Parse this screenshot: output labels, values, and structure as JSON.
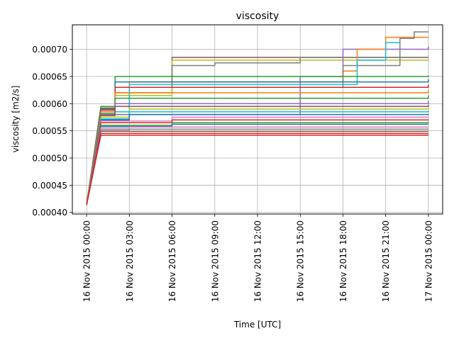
{
  "chart_data": {
    "type": "line",
    "title": "viscosity",
    "xlabel": "Time  [UTC]",
    "ylabel": "viscosity  [m2/s]",
    "x_start": "16 Nov 2015 00:00",
    "x_end": "17 Nov 2015 00:00",
    "xlim": [
      "2015-11-15T23:00",
      "2015-11-17T01:00"
    ],
    "ylim": [
      0.000397,
      0.000745
    ],
    "xticks": [
      {
        "t": "2015-11-16T00:00",
        "label": "16 Nov 2015 00:00"
      },
      {
        "t": "2015-11-16T03:00",
        "label": "16 Nov 2015 03:00"
      },
      {
        "t": "2015-11-16T06:00",
        "label": "16 Nov 2015 06:00"
      },
      {
        "t": "2015-11-16T09:00",
        "label": "16 Nov 2015 09:00"
      },
      {
        "t": "2015-11-16T12:00",
        "label": "16 Nov 2015 12:00"
      },
      {
        "t": "2015-11-16T15:00",
        "label": "16 Nov 2015 15:00"
      },
      {
        "t": "2015-11-16T18:00",
        "label": "16 Nov 2015 18:00"
      },
      {
        "t": "2015-11-16T21:00",
        "label": "16 Nov 2015 21:00"
      },
      {
        "t": "2015-11-17T00:00",
        "label": "17 Nov 2015 00:00"
      }
    ],
    "yticks": [
      {
        "v": 0.0004,
        "label": "0.00040"
      },
      {
        "v": 0.00045,
        "label": "0.00045"
      },
      {
        "v": 0.0005,
        "label": "0.00050"
      },
      {
        "v": 0.00055,
        "label": "0.00055"
      },
      {
        "v": 0.0006,
        "label": "0.00060"
      },
      {
        "v": 0.00065,
        "label": "0.00065"
      },
      {
        "v": 0.0007,
        "label": "0.00070"
      }
    ],
    "grid": true,
    "legend": "none",
    "colors": [
      "#1f77b4",
      "#ff7f0e",
      "#2ca02c",
      "#d62728",
      "#9467bd",
      "#8c564b",
      "#e377c2",
      "#7f7f7f",
      "#bcbd22",
      "#17becf"
    ],
    "series": [
      {
        "x": [
          "2015-11-16T00:00",
          "2015-11-16T01:00",
          "2015-11-16T02:00",
          "2015-11-16T06:00",
          "2015-11-17T00:00"
        ],
        "y": [
          0.000414,
          0.000592,
          0.00062,
          0.000685,
          0.000685
        ],
        "color": "#8c564b"
      },
      {
        "x": [
          "2015-11-16T00:00",
          "2015-11-16T01:00",
          "2015-11-16T02:00",
          "2015-11-16T06:00",
          "2015-11-17T00:00"
        ],
        "y": [
          0.000414,
          0.00059,
          0.000615,
          0.00068,
          0.00068
        ],
        "color": "#bcbd22"
      },
      {
        "x": [
          "2015-11-16T00:00",
          "2015-11-16T01:00",
          "2015-11-16T03:00",
          "2015-11-16T06:00",
          "2015-11-16T09:00",
          "2015-11-16T15:00",
          "2015-11-17T00:00"
        ],
        "y": [
          0.000414,
          0.000585,
          0.00063,
          0.00067,
          0.000675,
          0.000685,
          0.000685
        ],
        "color": "#7f7f7f"
      },
      {
        "x": [
          "2015-11-16T00:00",
          "2015-11-16T01:00",
          "2015-11-16T15:00",
          "2015-11-16T18:00",
          "2015-11-17T00:00"
        ],
        "y": [
          0.000414,
          0.00058,
          0.00065,
          0.0007,
          0.000705
        ],
        "color": "#9467bd"
      },
      {
        "x": [
          "2015-11-16T00:00",
          "2015-11-16T01:00",
          "2015-11-16T03:00",
          "2015-11-16T18:00",
          "2015-11-16T19:00",
          "2015-11-16T21:00",
          "2015-11-17T00:00"
        ],
        "y": [
          0.000414,
          0.000585,
          0.00064,
          0.00066,
          0.0007,
          0.000722,
          0.000722
        ],
        "color": "#ff7f0e"
      },
      {
        "x": [
          "2015-11-16T00:00",
          "2015-11-16T01:00",
          "2015-11-16T03:00",
          "2015-11-16T18:00",
          "2015-11-16T22:00",
          "2015-11-16T23:00",
          "2015-11-17T00:00"
        ],
        "y": [
          0.000414,
          0.00058,
          0.00063,
          0.00067,
          0.00072,
          0.000732,
          0.000732
        ],
        "color": "#7f7f7f"
      },
      {
        "x": [
          "2015-11-16T00:00",
          "2015-11-16T01:00",
          "2015-11-16T03:00",
          "2015-11-16T19:00",
          "2015-11-16T21:00",
          "2015-11-16T22:00"
        ],
        "y": [
          0.000414,
          0.000585,
          0.000635,
          0.00068,
          0.000712,
          0.000712
        ],
        "color": "#17becf"
      },
      {
        "x": [
          "2015-11-16T00:00",
          "2015-11-16T01:00",
          "2015-11-16T02:00",
          "2015-11-17T00:00"
        ],
        "y": [
          0.000414,
          0.000595,
          0.00065,
          0.000652
        ],
        "color": "#2ca02c"
      },
      {
        "x": [
          "2015-11-16T00:00",
          "2015-11-16T01:00",
          "2015-11-16T02:00",
          "2015-11-17T00:00"
        ],
        "y": [
          0.000414,
          0.00059,
          0.00064,
          0.000645
        ],
        "color": "#1f77b4"
      },
      {
        "x": [
          "2015-11-16T00:00",
          "2015-11-16T01:00",
          "2015-11-16T02:00",
          "2015-11-17T00:00"
        ],
        "y": [
          0.000414,
          0.000588,
          0.00063,
          0.000635
        ],
        "color": "#d62728"
      },
      {
        "x": [
          "2015-11-16T00:00",
          "2015-11-16T01:00",
          "2015-11-16T02:00",
          "2015-11-17T00:00"
        ],
        "y": [
          0.000414,
          0.000585,
          0.00062,
          0.000625
        ],
        "color": "#ff7f0e"
      },
      {
        "x": [
          "2015-11-16T00:00",
          "2015-11-16T01:00",
          "2015-11-16T02:00",
          "2015-11-17T00:00"
        ],
        "y": [
          0.000414,
          0.000582,
          0.00061,
          0.000615
        ],
        "color": "#2ca02c"
      },
      {
        "x": [
          "2015-11-16T00:00",
          "2015-11-16T01:00",
          "2015-11-16T02:00",
          "2015-11-17T00:00"
        ],
        "y": [
          0.000414,
          0.00058,
          0.0006,
          0.000605
        ],
        "color": "#9467bd"
      },
      {
        "x": [
          "2015-11-16T00:00",
          "2015-11-16T01:00",
          "2015-11-16T02:00",
          "2015-11-17T00:00"
        ],
        "y": [
          0.000414,
          0.000578,
          0.000595,
          0.000598
        ],
        "color": "#8c564b"
      },
      {
        "x": [
          "2015-11-16T00:00",
          "2015-11-16T01:00",
          "2015-11-16T03:00",
          "2015-11-17T00:00"
        ],
        "y": [
          0.000414,
          0.000575,
          0.00059,
          0.000592
        ],
        "color": "#bcbd22"
      },
      {
        "x": [
          "2015-11-16T00:00",
          "2015-11-16T01:00",
          "2015-11-16T03:00",
          "2015-11-17T00:00"
        ],
        "y": [
          0.000414,
          0.000572,
          0.000585,
          0.000587
        ],
        "color": "#17becf"
      },
      {
        "x": [
          "2015-11-16T00:00",
          "2015-11-16T01:00",
          "2015-11-16T03:00",
          "2015-11-17T00:00"
        ],
        "y": [
          0.000414,
          0.00057,
          0.00058,
          0.000581
        ],
        "color": "#1f77b4"
      },
      {
        "x": [
          "2015-11-16T00:00",
          "2015-11-16T01:00",
          "2015-11-16T06:00",
          "2015-11-17T00:00"
        ],
        "y": [
          0.000414,
          0.000568,
          0.000575,
          0.000576
        ],
        "color": "#e377c2"
      },
      {
        "x": [
          "2015-11-16T00:00",
          "2015-11-16T01:00",
          "2015-11-16T06:00",
          "2015-11-17T00:00"
        ],
        "y": [
          0.000414,
          0.000565,
          0.00057,
          0.000571
        ],
        "color": "#d62728"
      },
      {
        "x": [
          "2015-11-16T00:00",
          "2015-11-16T01:00",
          "2015-11-16T06:00",
          "2015-11-17T00:00"
        ],
        "y": [
          0.000414,
          0.00056,
          0.000565,
          0.000566
        ],
        "color": "#2ca02c"
      },
      {
        "x": [
          "2015-11-16T00:00",
          "2015-11-16T01:00",
          "2015-11-16T06:00",
          "2015-11-17T00:00"
        ],
        "y": [
          0.000414,
          0.000558,
          0.000562,
          0.000562
        ],
        "color": "#1f77b4"
      },
      {
        "x": [
          "2015-11-16T00:00",
          "2015-11-16T01:00",
          "2015-11-16T03:00",
          "2015-11-17T00:00"
        ],
        "y": [
          0.000414,
          0.000555,
          0.000557,
          0.000557
        ],
        "color": "#e377c2"
      },
      {
        "x": [
          "2015-11-16T00:00",
          "2015-11-16T01:00",
          "2015-11-16T03:00",
          "2015-11-17T00:00"
        ],
        "y": [
          0.000414,
          0.000552,
          0.000553,
          0.000553
        ],
        "color": "#7f7f7f"
      },
      {
        "x": [
          "2015-11-16T00:00",
          "2015-11-16T01:00",
          "2015-11-16T03:00",
          "2015-11-17T00:00"
        ],
        "y": [
          0.000414,
          0.000549,
          0.000549,
          0.000549
        ],
        "color": "#8c564b"
      },
      {
        "x": [
          "2015-11-16T00:00",
          "2015-11-16T01:00",
          "2015-11-17T00:00"
        ],
        "y": [
          0.000414,
          0.000545,
          0.000545
        ],
        "color": "#d62728"
      },
      {
        "x": [
          "2015-11-16T00:00",
          "2015-11-16T01:00",
          "2015-11-17T00:00"
        ],
        "y": [
          0.000414,
          0.000542,
          0.000542
        ],
        "color": "#d62728"
      }
    ]
  }
}
